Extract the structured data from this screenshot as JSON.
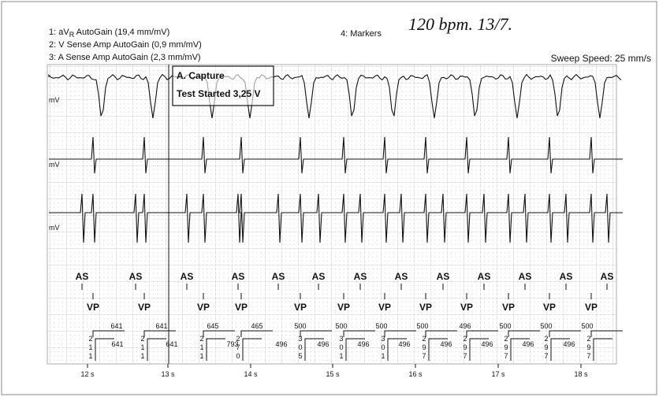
{
  "header": {
    "line1": {
      "prefix": "1: aV",
      "subscript": "R",
      "suffix": " AutoGain (19,4 mm/mV)"
    },
    "line2": "2: V Sense Amp AutoGain (0,9 mm/mV)",
    "line3": "3: A Sense Amp AutoGain (2,3 mm/mV)",
    "markers": "4: Markers",
    "note": "120 bpm. 13/7.",
    "sweep": "Sweep Speed: 25 mm/s"
  },
  "annotation": {
    "title": "A. Capture",
    "detail": "Test Started 3,25 V"
  },
  "channels": {
    "unit": [
      "mV",
      "mV",
      "mV"
    ]
  },
  "markers": {
    "atrial": [
      "AS",
      "AS",
      "AS",
      "AS",
      "AS",
      "AS",
      "AS",
      "AS",
      "AS",
      "AS",
      "AS",
      "AS",
      "AS"
    ],
    "ventricular": [
      "VP",
      "VP",
      "VP",
      "VP",
      "VP",
      "VP",
      "VP",
      "VP",
      "VP",
      "VP",
      "VP",
      "VP"
    ],
    "intervals_upper": [
      "641",
      "641",
      "645",
      "465",
      "500",
      "500",
      "500",
      "500",
      "496",
      "500",
      "500",
      "500"
    ],
    "intervals_lower": [
      "641",
      "641",
      "793",
      "496",
      "496",
      "496",
      "496",
      "496",
      "496",
      "496",
      "496"
    ],
    "intervals_vertical": [
      "211",
      "211",
      "211",
      "270",
      "305",
      "301",
      "301",
      "297",
      "297",
      "297",
      "297",
      "297"
    ]
  },
  "time_labels": [
    "12 s",
    "13 s",
    "14 s",
    "15 s",
    "16 s",
    "17 s",
    "18 s"
  ]
}
